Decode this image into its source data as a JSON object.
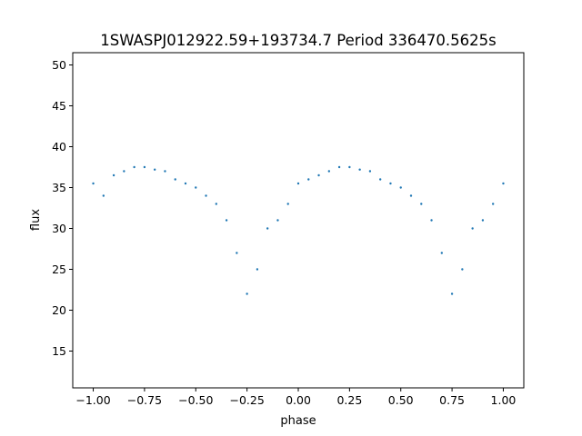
{
  "chart_data": {
    "type": "scatter",
    "title": "1SWASPJ012922.59+193734.7 Period 336470.5625s",
    "xlabel": "phase",
    "ylabel": "flux",
    "xlim": [
      -1.1,
      1.1
    ],
    "ylim": [
      10.5,
      51.5
    ],
    "xticks": [
      -1.0,
      -0.75,
      -0.5,
      -0.25,
      0.0,
      0.25,
      0.5,
      0.75,
      1.0
    ],
    "xtick_labels": [
      "−1.00",
      "−0.75",
      "−0.50",
      "−0.25",
      "0.00",
      "0.25",
      "0.50",
      "0.75",
      "1.00"
    ],
    "yticks": [
      15,
      20,
      25,
      30,
      35,
      40,
      45,
      50
    ],
    "ytick_labels": [
      "15",
      "20",
      "25",
      "30",
      "35",
      "40",
      "45",
      "50"
    ],
    "grid": false,
    "point_color": "#1f77b4",
    "series": [
      {
        "x": [
          -1.0,
          -0.95,
          -0.9,
          -0.85,
          -0.8,
          -0.75,
          -0.7,
          -0.65,
          -0.6,
          -0.55,
          -0.5,
          -0.45,
          -0.4,
          -0.35,
          -0.3,
          -0.25,
          -0.2,
          -0.15,
          -0.1,
          -0.05,
          0.0,
          0.05,
          0.1,
          0.15,
          0.2,
          0.25,
          0.3,
          0.35,
          0.4,
          0.45,
          0.5,
          0.55,
          0.6,
          0.65,
          0.7,
          0.75,
          0.8,
          0.85,
          0.9,
          0.95,
          1.0
        ],
        "y": [
          35.5,
          34.0,
          36.5,
          37.0,
          37.5,
          37.5,
          37.2,
          37.0,
          36.0,
          35.5,
          35.0,
          34.0,
          33.0,
          31.0,
          27.0,
          22.0,
          25.0,
          30.0,
          31.0,
          33.0,
          35.5,
          36.0,
          36.5,
          37.0,
          37.5,
          37.5,
          37.2,
          37.0,
          36.0,
          35.5,
          35.0,
          34.0,
          33.0,
          31.0,
          27.0,
          22.0,
          25.0,
          30.0,
          31.0,
          33.0,
          35.5
        ]
      }
    ]
  }
}
